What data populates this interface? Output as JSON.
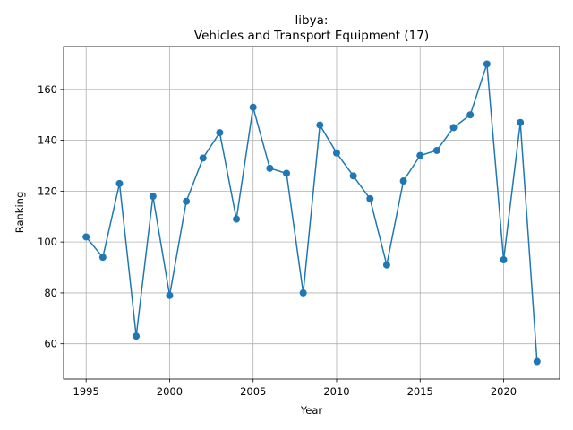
{
  "chart_data": {
    "type": "line",
    "title_line1": "libya:",
    "title_line2": "Vehicles and Transport Equipment (17)",
    "xlabel": "Year",
    "ylabel": "Ranking",
    "xlim": [
      1993.65,
      2023.35
    ],
    "ylim": [
      46.15,
      176.85
    ],
    "xticks": [
      1995,
      2000,
      2005,
      2010,
      2015,
      2020
    ],
    "yticks": [
      60,
      80,
      100,
      120,
      140,
      160
    ],
    "grid": true,
    "color": "#1f77b4",
    "series": [
      {
        "x": [
          1995,
          1996,
          1997,
          1998,
          1999,
          2000,
          2001,
          2002,
          2003,
          2004,
          2005,
          2006,
          2007,
          2008,
          2009,
          2010,
          2011,
          2012,
          2013,
          2014,
          2015,
          2016,
          2017,
          2018,
          2019,
          2020,
          2021,
          2022
        ],
        "values": [
          102,
          94,
          123,
          63,
          118,
          79,
          116,
          133,
          143,
          109,
          153,
          129,
          127,
          80,
          146,
          135,
          126,
          117,
          91,
          124,
          134,
          136,
          145,
          150,
          170,
          93,
          147,
          53
        ]
      }
    ]
  }
}
